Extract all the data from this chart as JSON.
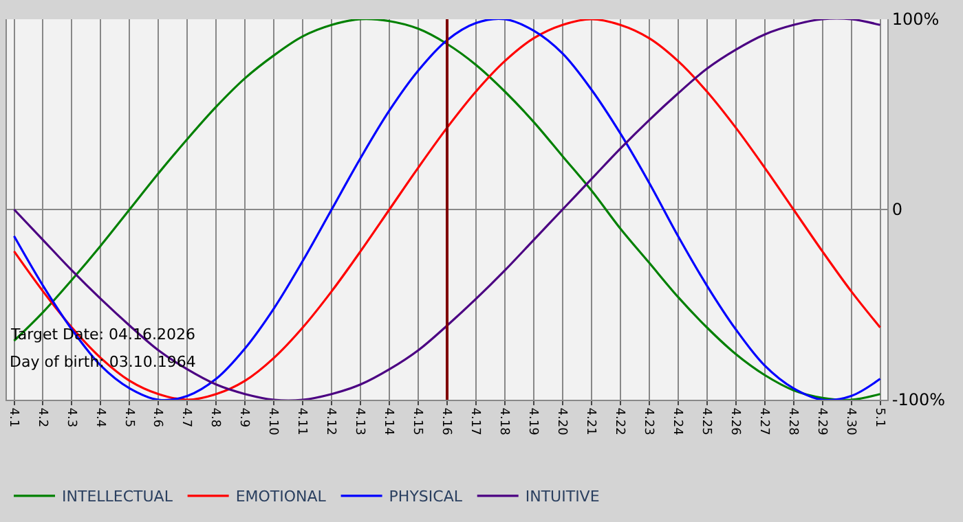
{
  "chart_data": {
    "type": "line",
    "categories": [
      "4.1",
      "4.2",
      "4.3",
      "4.4",
      "4.5",
      "4.6",
      "4.7",
      "4.8",
      "4.9",
      "4.10",
      "4.11",
      "4.12",
      "4.13",
      "4.14",
      "4.15",
      "4.16",
      "4.17",
      "4.18",
      "4.19",
      "4.20",
      "4.21",
      "4.22",
      "4.23",
      "4.24",
      "4.25",
      "4.26",
      "4.27",
      "4.28",
      "4.29",
      "4.30",
      "5.1"
    ],
    "series": [
      {
        "name": "INTELLECTUAL",
        "color": "#008000",
        "values": [
          -69,
          -54,
          -37,
          -19,
          0,
          19,
          37,
          54,
          69,
          81,
          91,
          97,
          100,
          99,
          95,
          87,
          76,
          62,
          46,
          28,
          10,
          -10,
          -28,
          -46,
          -62,
          -76,
          -87,
          -95,
          -99,
          -100,
          -97
        ]
      },
      {
        "name": "EMOTIONAL",
        "color": "#ff0000",
        "values": [
          -22,
          -43,
          -62,
          -78,
          -90,
          -97,
          -100,
          -97,
          -90,
          -78,
          -62,
          -43,
          -22,
          0,
          22,
          43,
          62,
          78,
          90,
          97,
          100,
          97,
          90,
          78,
          62,
          43,
          22,
          0,
          -22,
          -43,
          -62
        ]
      },
      {
        "name": "PHYSICAL",
        "color": "#0000ff",
        "values": [
          -14,
          -40,
          -63,
          -82,
          -94,
          -100,
          -98,
          -89,
          -73,
          -52,
          -27,
          0,
          27,
          52,
          73,
          89,
          98,
          100,
          94,
          82,
          63,
          40,
          14,
          -14,
          -40,
          -63,
          -82,
          -94,
          -100,
          -98,
          -89
        ]
      },
      {
        "name": "INTUITIVE",
        "color": "#4b0082",
        "values": [
          0,
          -16,
          -32,
          -47,
          -61,
          -74,
          -84,
          -92,
          -97,
          -100,
          -100,
          -97,
          -92,
          -84,
          -74,
          -61,
          -47,
          -32,
          -16,
          0,
          16,
          32,
          47,
          61,
          74,
          84,
          92,
          97,
          100,
          100,
          97
        ]
      }
    ],
    "ylim": [
      -100,
      100
    ],
    "yticks": [
      {
        "value": -100,
        "label": "-100%"
      },
      0,
      {
        "value": 100,
        "label": "100%"
      }
    ],
    "ref_lines": [
      {
        "axis": "x",
        "value": "4.16",
        "color": "#800000"
      }
    ],
    "annotations": [
      "Target Date: 04.16.2026",
      "Day of birth: 03.10.1964"
    ],
    "grid": true,
    "legend": "bottom",
    "marker": "none",
    "line_style": "solid"
  }
}
